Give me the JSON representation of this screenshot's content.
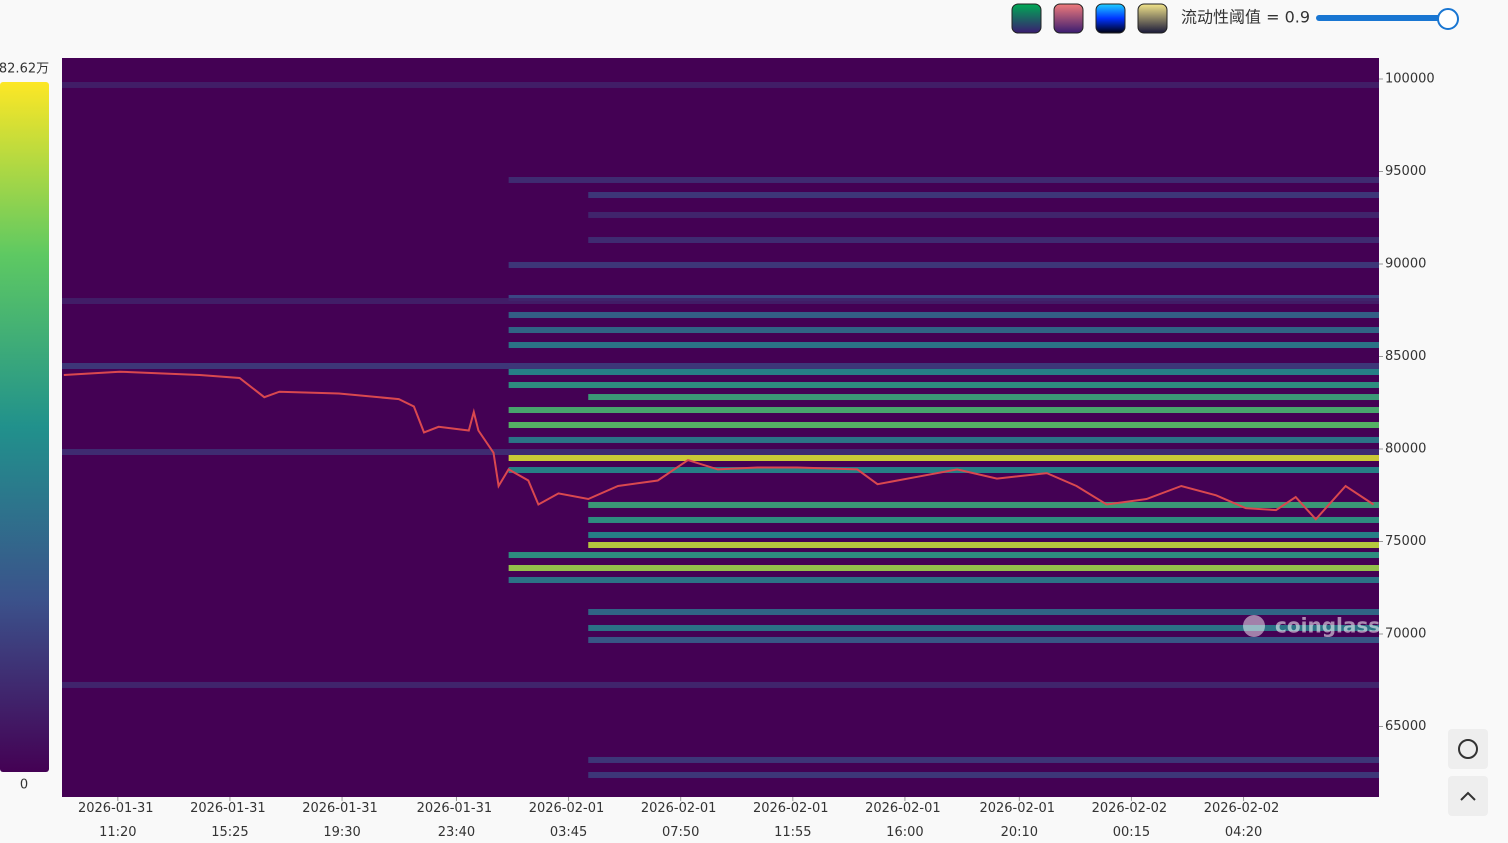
{
  "controls": {
    "threshold_label": "流动性阈值 = 0.9"
  },
  "watermark": "coinglass",
  "chart_data": {
    "type": "heatmap",
    "ylim": [
      61190,
      101135
    ],
    "yticks": [
      65000,
      70000,
      75000,
      80000,
      85000,
      90000,
      95000,
      100000
    ],
    "xlim": [
      "2026-01-31 09:18",
      "2026-02-02 09:16"
    ],
    "xticks": [
      "2026-01-31 11:20",
      "2026-01-31 15:25",
      "2026-01-31 19:30",
      "2026-01-31 23:40",
      "2026-02-01 03:45",
      "2026-02-01 07:50",
      "2026-02-01 11:55",
      "2026-02-01 16:00",
      "2026-02-01 20:10",
      "2026-02-02 00:15",
      "2026-02-02 04:20"
    ],
    "background": "#440154",
    "colorbar": {
      "clim": [
        0,
        82.62
      ],
      "ticks": [
        {
          "value": 82.62,
          "label": "82.62万"
        },
        0
      ]
    },
    "bands": {
      "prices": [
        79514,
        74811,
        73568,
        81298,
        82108,
        82810,
        83460,
        84163,
        85622,
        86432,
        87244,
        76975,
        76164,
        75353,
        74270,
        72920,
        71190,
        70326,
        69677,
        88163,
        89947,
        91297,
        92650,
        93730,
        94541,
        78865,
        80489,
        63192,
        62380,
        67246,
        84487,
        79838,
        99676,
        88000
      ],
      "starts": [
        "2026-02-01 01:34",
        "2026-02-01 04:28",
        "2026-02-01 01:34",
        "2026-02-01 01:34",
        "2026-02-01 01:34",
        "2026-02-01 04:28",
        "2026-02-01 01:34",
        "2026-02-01 01:34",
        "2026-02-01 01:34",
        "2026-02-01 01:34",
        "2026-02-01 01:34",
        "2026-02-01 04:28",
        "2026-02-01 04:28",
        "2026-02-01 04:28",
        "2026-02-01 01:34",
        "2026-02-01 01:34",
        "2026-02-01 04:28",
        "2026-02-01 04:28",
        "2026-02-01 04:28",
        "2026-02-01 01:34",
        "2026-02-01 01:34",
        "2026-02-01 04:28",
        "2026-02-01 04:28",
        "2026-02-01 04:28",
        "2026-02-01 01:34",
        "2026-02-01 01:34",
        "2026-02-01 01:34",
        "2026-02-01 04:28",
        "2026-02-01 04:28",
        "2026-01-31 09:18",
        "2026-01-31 09:18",
        "2026-01-31 09:18",
        "2026-01-31 09:18",
        "2026-01-31 09:18"
      ],
      "values": [
        78,
        75,
        70,
        60,
        55,
        50,
        45,
        40,
        35,
        30,
        28,
        50,
        45,
        40,
        45,
        35,
        30,
        35,
        25,
        20,
        15,
        12,
        10,
        15,
        12,
        40,
        35,
        15,
        15,
        10,
        15,
        12,
        8,
        8
      ]
    },
    "price": {
      "color": "#d9484f",
      "x": [
        "2026-01-31 09:22",
        "2026-01-31 11:24",
        "2026-01-31 14:19",
        "2026-01-31 15:46",
        "2026-01-31 16:40",
        "2026-01-31 17:13",
        "2026-01-31 19:23",
        "2026-01-31 21:34",
        "2026-01-31 22:07",
        "2026-01-31 22:29",
        "2026-01-31 23:01",
        "2026-02-01 00:07",
        "2026-02-01 00:18",
        "2026-02-01 00:28",
        "2026-02-01 01:01",
        "2026-02-01 01:12",
        "2026-02-01 01:34",
        "2026-02-01 02:17",
        "2026-02-01 02:39",
        "2026-02-01 03:23",
        "2026-02-01 04:28",
        "2026-02-01 05:33",
        "2026-02-01 07:00",
        "2026-02-01 08:06",
        "2026-02-01 09:11",
        "2026-02-01 10:38",
        "2026-02-01 12:05",
        "2026-02-01 14:16",
        "2026-02-01 15:00",
        "2026-02-01 16:27",
        "2026-02-01 17:54",
        "2026-02-01 19:21",
        "2026-02-01 21:10",
        "2026-02-01 22:15",
        "2026-02-01 23:21",
        "2026-02-02 00:48",
        "2026-02-02 02:04",
        "2026-02-02 03:20",
        "2026-02-02 04:25",
        "2026-02-02 05:31",
        "2026-02-02 06:14",
        "2026-02-02 06:58",
        "2026-02-02 08:03",
        "2026-02-02 09:04"
      ],
      "values": [
        84000,
        84180,
        84000,
        83840,
        82800,
        83100,
        83000,
        82700,
        82300,
        80900,
        81200,
        81000,
        82000,
        81000,
        79800,
        78000,
        78900,
        78300,
        77000,
        77600,
        77300,
        78000,
        78300,
        79400,
        78900,
        79000,
        79000,
        78900,
        78100,
        78500,
        78900,
        78400,
        78700,
        78000,
        77000,
        77300,
        78000,
        77500,
        76800,
        76700,
        77400,
        76200,
        78000,
        77000
      ]
    }
  }
}
